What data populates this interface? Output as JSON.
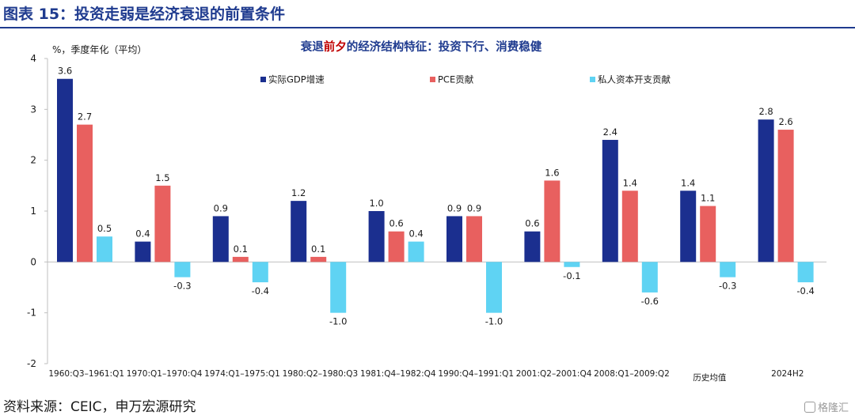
{
  "figure": {
    "title": "图表 15：投资走弱是经济衰退的前置条件",
    "source": "资料来源：CEIC，申万宏源研究",
    "watermark": "格隆汇"
  },
  "colors": {
    "title_blue": "#1f3b8f",
    "gdp": "#1b2f8f",
    "pce": "#e8605f",
    "private_investment": "#5fd3f3",
    "highlight_red": "#c00000"
  },
  "chart_data": {
    "type": "bar",
    "title_parts": [
      "衰退",
      "前夕",
      "的经济结构特征：投资下行、消费稳健"
    ],
    "ylabel": "%，季度年化（平均）",
    "xlabel": "",
    "ylim": [
      -2,
      4
    ],
    "yticks": [
      -2,
      -1,
      0,
      1,
      2,
      3,
      4
    ],
    "grid": false,
    "legend_position": "top",
    "categories": [
      "1960:Q3–1961:Q1",
      "1970:Q1–1970:Q4",
      "1974:Q1–1975:Q1",
      "1980:Q2–1980:Q3",
      "1981:Q4–1982:Q4",
      "1990:Q4–1991:Q1",
      "2001:Q2–2001:Q4",
      "2008:Q1–2009:Q2",
      "历史均值",
      "2024H2"
    ],
    "series": [
      {
        "name": "实际GDP增速",
        "color_key": "gdp",
        "values": [
          3.6,
          0.4,
          0.9,
          1.2,
          1.0,
          0.9,
          0.6,
          2.4,
          1.4,
          2.8
        ],
        "labels": [
          "3.6",
          "0.4",
          "0.9",
          "1.2",
          "1.0",
          "0.9",
          "0.6",
          "2.4",
          "1.4",
          "2.8"
        ]
      },
      {
        "name": "PCE贡献",
        "color_key": "pce",
        "values": [
          2.7,
          1.5,
          0.1,
          0.1,
          0.6,
          0.9,
          1.6,
          1.4,
          1.1,
          2.6
        ],
        "labels": [
          "2.7",
          "1.5",
          "0.1",
          "0.1",
          "0.6",
          "0.9",
          "1.6",
          "1.4",
          "1.1",
          "2.6"
        ]
      },
      {
        "name": "私人资本开支贡献",
        "color_key": "private_investment",
        "values": [
          0.5,
          -0.3,
          -0.4,
          -1.0,
          0.4,
          -1.0,
          -0.1,
          -0.6,
          -0.3,
          -0.4
        ],
        "labels": [
          "0.5",
          "-0.3",
          "-0.4",
          "-1.0",
          "0.4",
          "-1.0",
          "-0.1",
          "-0.6",
          "-0.3",
          "-0.4"
        ]
      }
    ]
  }
}
